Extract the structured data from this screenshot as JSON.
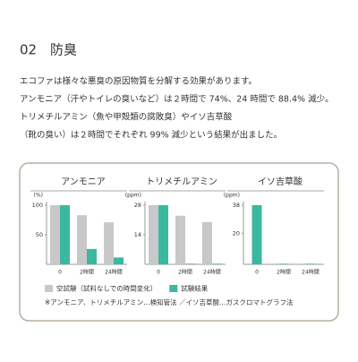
{
  "heading": {
    "number": "02",
    "title": "防臭"
  },
  "paragraphs": [
    "エコファは様々な悪臭の原因物質を分解する効果があります。",
    "アンモニア（汗やトイレの臭いなど）は２時間で 74%、24 時間で 88.4% 減少。",
    "トリメチルアミン（魚や甲殻類の腐敗臭）やイソ吉草酸",
    "（靴の臭い）は２時間でそれぞれ 99% 減少という結果が出ました。"
  ],
  "chart_data": [
    {
      "type": "bar",
      "title": "アンモニア",
      "unit": "(%)",
      "categories": [
        "0",
        "2時間",
        "24時間"
      ],
      "ylim": [
        0,
        100
      ],
      "yticks": [
        100,
        50
      ],
      "series": [
        {
          "color": "#c8c8c8",
          "values": [
            100,
            83,
            71
          ]
        },
        {
          "color": "#3bb8a0",
          "values": [
            100,
            26,
            11.6
          ]
        }
      ]
    },
    {
      "type": "bar",
      "title": "トリメチルアミン",
      "unit": "(ppm)",
      "categories": [
        "0",
        "2時間",
        "24時間"
      ],
      "ylim": [
        0,
        28
      ],
      "yticks": [
        28,
        14
      ],
      "series": [
        {
          "color": "#c8c8c8",
          "values": [
            28,
            23,
            20
          ]
        },
        {
          "color": "#3bb8a0",
          "values": [
            28,
            0.3,
            0.3
          ]
        }
      ]
    },
    {
      "type": "bar",
      "title": "イソ吉草酸",
      "unit": "(ppm)",
      "categories": [
        "0",
        "2時間",
        "24時間"
      ],
      "ylim": [
        0,
        38
      ],
      "yticks": [
        38,
        20
      ],
      "series": [
        {
          "color": "#3bb8a0",
          "values": [
            38,
            0.4,
            0.4
          ]
        }
      ]
    }
  ],
  "legend": [
    {
      "name": "空試験（試料なしでの時間変化）",
      "color": "#c8c8c8"
    },
    {
      "name": "試験結果",
      "color": "#3bb8a0"
    }
  ],
  "note": "※アンモニア、トリメチルアミン…検知管法 ／イソ吉草酸…ガスクロマトグラフ法"
}
